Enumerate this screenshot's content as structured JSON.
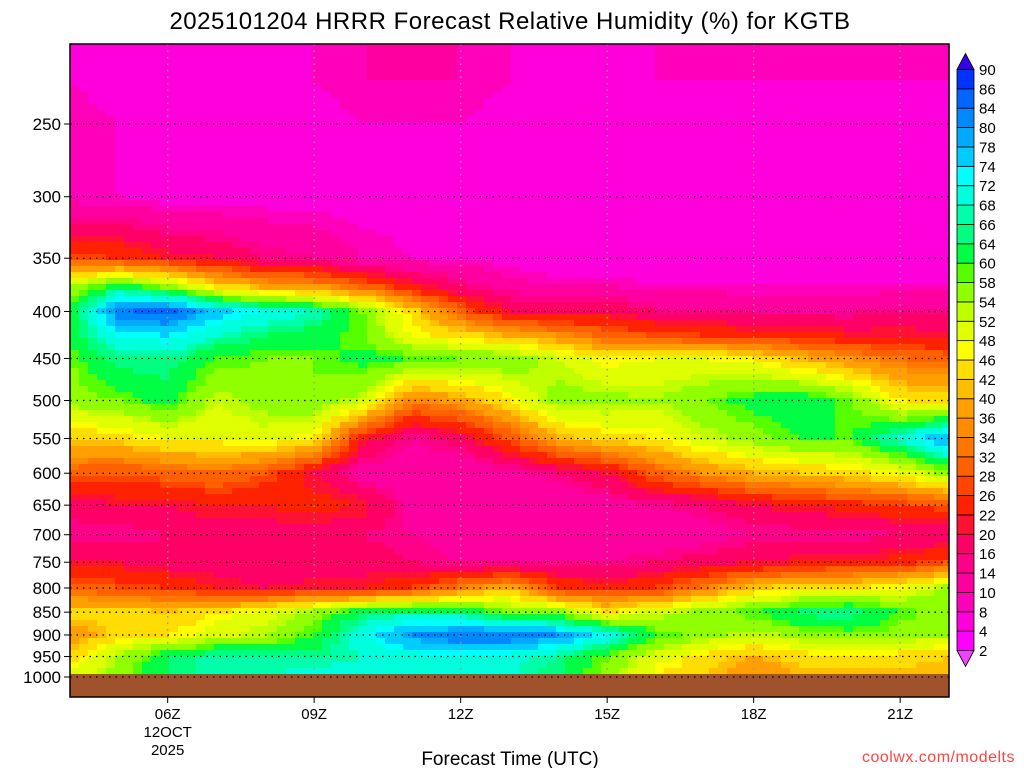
{
  "chart_data": {
    "type": "heatmap",
    "title": "2025101204 HRRR Forecast Relative Humidity (%) for KGTB",
    "xlabel": "Forecast Time (UTC)",
    "ylabel": "",
    "x_range_hours_utc": [
      4,
      22
    ],
    "x_hours": [
      4,
      5,
      6,
      7,
      8,
      9,
      10,
      11,
      12,
      13,
      14,
      15,
      16,
      17,
      18,
      19,
      20,
      21,
      22
    ],
    "x_ticks": [
      {
        "hour": 6,
        "label": "06Z",
        "sub1": "12OCT",
        "sub2": "2025"
      },
      {
        "hour": 9,
        "label": "09Z"
      },
      {
        "hour": 12,
        "label": "12Z"
      },
      {
        "hour": 15,
        "label": "15Z"
      },
      {
        "hour": 18,
        "label": "18Z"
      },
      {
        "hour": 21,
        "label": "21Z"
      }
    ],
    "y_scale": "log-pressure (hPa), inverted",
    "y_range_hpa": [
      1050,
      205
    ],
    "y_ticks": [
      250,
      300,
      350,
      400,
      450,
      500,
      550,
      600,
      650,
      700,
      750,
      800,
      850,
      900,
      950,
      1000
    ],
    "y_levels": [
      225,
      250,
      300,
      350,
      375,
      400,
      425,
      450,
      500,
      550,
      600,
      650,
      700,
      750,
      800,
      850,
      900,
      950,
      1000
    ],
    "values": [
      [
        8,
        6,
        4,
        4,
        6,
        8,
        10,
        10,
        10,
        8,
        6,
        6,
        8,
        8,
        8,
        8,
        8,
        8,
        8
      ],
      [
        10,
        8,
        6,
        6,
        6,
        6,
        8,
        8,
        8,
        6,
        6,
        6,
        6,
        6,
        6,
        6,
        6,
        6,
        6
      ],
      [
        8,
        8,
        6,
        6,
        6,
        6,
        6,
        6,
        4,
        4,
        4,
        4,
        4,
        4,
        4,
        4,
        4,
        6,
        6
      ],
      [
        28,
        26,
        22,
        20,
        16,
        14,
        10,
        8,
        8,
        6,
        4,
        4,
        4,
        4,
        4,
        4,
        4,
        4,
        6
      ],
      [
        54,
        62,
        56,
        44,
        38,
        36,
        30,
        22,
        16,
        12,
        10,
        10,
        8,
        8,
        8,
        8,
        8,
        8,
        8
      ],
      [
        60,
        84,
        86,
        76,
        72,
        68,
        58,
        44,
        30,
        20,
        18,
        20,
        16,
        16,
        14,
        14,
        14,
        16,
        16
      ],
      [
        62,
        72,
        74,
        68,
        64,
        62,
        58,
        48,
        44,
        40,
        36,
        30,
        28,
        26,
        24,
        24,
        22,
        22,
        20
      ],
      [
        58,
        66,
        66,
        60,
        58,
        58,
        62,
        60,
        58,
        58,
        52,
        46,
        48,
        48,
        46,
        40,
        36,
        32,
        30
      ],
      [
        56,
        58,
        62,
        52,
        56,
        58,
        52,
        34,
        38,
        46,
        56,
        56,
        54,
        58,
        62,
        64,
        58,
        46,
        44
      ],
      [
        42,
        44,
        48,
        48,
        50,
        46,
        22,
        14,
        18,
        28,
        40,
        44,
        46,
        52,
        56,
        60,
        60,
        70,
        80
      ],
      [
        30,
        28,
        30,
        32,
        28,
        20,
        12,
        10,
        10,
        12,
        16,
        20,
        30,
        36,
        40,
        42,
        44,
        48,
        56
      ],
      [
        18,
        20,
        20,
        22,
        22,
        24,
        22,
        12,
        10,
        10,
        10,
        12,
        14,
        16,
        20,
        22,
        24,
        26,
        28
      ],
      [
        14,
        14,
        16,
        18,
        18,
        18,
        16,
        14,
        12,
        10,
        10,
        10,
        10,
        12,
        14,
        14,
        14,
        16,
        16
      ],
      [
        20,
        20,
        18,
        18,
        16,
        16,
        18,
        16,
        14,
        14,
        14,
        14,
        16,
        18,
        20,
        22,
        22,
        24,
        28
      ],
      [
        30,
        28,
        26,
        22,
        20,
        22,
        22,
        26,
        34,
        40,
        26,
        24,
        26,
        34,
        42,
        44,
        46,
        48,
        56
      ],
      [
        44,
        44,
        42,
        46,
        50,
        56,
        64,
        66,
        64,
        58,
        56,
        46,
        52,
        56,
        60,
        66,
        66,
        60,
        56
      ],
      [
        36,
        44,
        46,
        50,
        54,
        60,
        72,
        80,
        84,
        84,
        80,
        72,
        60,
        56,
        52,
        56,
        58,
        56,
        54
      ],
      [
        44,
        54,
        64,
        68,
        66,
        66,
        68,
        70,
        72,
        70,
        66,
        58,
        50,
        44,
        40,
        44,
        44,
        44,
        42
      ],
      [
        50,
        56,
        64,
        68,
        68,
        70,
        70,
        72,
        72,
        68,
        64,
        56,
        46,
        42,
        34,
        40,
        40,
        40,
        40
      ]
    ],
    "colorbar": {
      "levels": [
        2,
        4,
        8,
        10,
        14,
        16,
        20,
        22,
        26,
        28,
        32,
        34,
        36,
        40,
        42,
        46,
        48,
        52,
        54,
        58,
        60,
        64,
        66,
        68,
        72,
        74,
        78,
        80,
        84,
        86,
        90
      ],
      "colors": [
        "#ee44ff",
        "#ff00ff",
        "#ff00dd",
        "#ff00bb",
        "#ff00a0",
        "#ff0088",
        "#ff0066",
        "#ff1133",
        "#ff2200",
        "#ff4400",
        "#ff6000",
        "#ff7700",
        "#ff8c00",
        "#ffa000",
        "#ffbf00",
        "#ffdd00",
        "#ffff00",
        "#e0ff00",
        "#c0ff00",
        "#90ff00",
        "#55ff00",
        "#00ff44",
        "#00ff80",
        "#00ffaa",
        "#00ffdd",
        "#00ffff",
        "#00ccff",
        "#00aaff",
        "#0088ff",
        "#0066ff",
        "#0033ff",
        "#3300ee"
      ],
      "extend": "both"
    },
    "ground_color": "#a0522d",
    "watermark": "coolwx.com/modelts",
    "watermark_color": "#ff4444"
  }
}
